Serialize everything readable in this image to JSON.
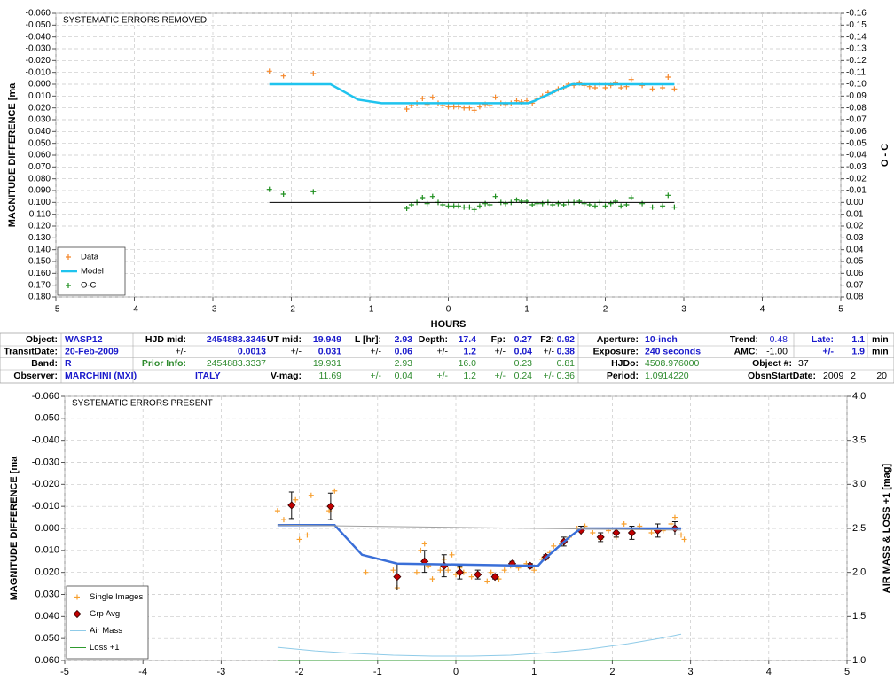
{
  "chart_data": [
    {
      "type": "line",
      "title": "SYSTEMATIC ERRORS REMOVED",
      "ylabel": "MAGNITUDE DIFFERENCE [ma",
      "y2label": "O - C",
      "xlabel": "HOURS",
      "xlim": [
        -5,
        5
      ],
      "xticks": [
        -5,
        -4,
        -3,
        -2,
        -1,
        0,
        1,
        2,
        3,
        4,
        5
      ],
      "ylim": [
        -0.06,
        0.18
      ],
      "y_inverted": true,
      "yticks": [
        {
          "value": -0.06,
          "label": "-0.060"
        },
        {
          "value": -0.05,
          "label": "-0.050"
        },
        {
          "value": -0.04,
          "label": "-0.040"
        },
        {
          "value": -0.03,
          "label": "-0.030"
        },
        {
          "value": -0.02,
          "label": "-0.020"
        },
        {
          "value": -0.01,
          "label": "-0.010"
        },
        {
          "value": 0,
          "label": "0.000"
        },
        {
          "value": 0.01,
          "label": "0.010"
        },
        {
          "value": 0.02,
          "label": "0.020"
        },
        {
          "value": 0.03,
          "label": "0.030"
        },
        {
          "value": 0.04,
          "label": "0.040"
        },
        {
          "value": 0.05,
          "label": "0.050"
        },
        {
          "value": 0.06,
          "label": "0.060"
        },
        {
          "value": 0.07,
          "label": "0.070"
        },
        {
          "value": 0.08,
          "label": "0.080"
        },
        {
          "value": 0.09,
          "label": "0.090"
        },
        {
          "value": 0.1,
          "label": "0.100"
        },
        {
          "value": 0.11,
          "label": "0.110"
        },
        {
          "value": 0.12,
          "label": "0.120"
        },
        {
          "value": 0.13,
          "label": "0.130"
        },
        {
          "value": 0.14,
          "label": "0.140"
        },
        {
          "value": 0.15,
          "label": "0.150"
        },
        {
          "value": 0.16,
          "label": "0.160"
        },
        {
          "value": 0.17,
          "label": "0.170"
        },
        {
          "value": 0.18,
          "label": "0.180"
        }
      ],
      "y2lim": [
        -0.16,
        0.08
      ],
      "y2_inverted": true,
      "y2ticks": [
        {
          "value": -0.16,
          "label": "-0.16"
        },
        {
          "value": -0.15,
          "label": "-0.15"
        },
        {
          "value": -0.14,
          "label": "-0.14"
        },
        {
          "value": -0.13,
          "label": "-0.13"
        },
        {
          "value": -0.12,
          "label": "-0.12"
        },
        {
          "value": -0.11,
          "label": "-0.11"
        },
        {
          "value": -0.1,
          "label": "-0.10"
        },
        {
          "value": -0.09,
          "label": "-0.09"
        },
        {
          "value": -0.08,
          "label": "-0.08"
        },
        {
          "value": -0.07,
          "label": "-0.07"
        },
        {
          "value": -0.06,
          "label": "-0.06"
        },
        {
          "value": -0.05,
          "label": "-0.05"
        },
        {
          "value": -0.04,
          "label": "-0.04"
        },
        {
          "value": -0.03,
          "label": "-0.03"
        },
        {
          "value": -0.02,
          "label": "-0.02"
        },
        {
          "value": -0.01,
          "label": "-0.01"
        },
        {
          "value": 0,
          "label": "0.00"
        },
        {
          "value": 0.01,
          "label": "0.01"
        },
        {
          "value": 0.02,
          "label": "0.02"
        },
        {
          "value": 0.03,
          "label": "0.03"
        },
        {
          "value": 0.04,
          "label": "0.04"
        },
        {
          "value": 0.05,
          "label": "0.05"
        },
        {
          "value": 0.06,
          "label": "0.06"
        },
        {
          "value": 0.07,
          "label": "0.07"
        },
        {
          "value": 0.08,
          "label": "0.08"
        }
      ],
      "grid": true,
      "legend": "lower left",
      "series": [
        {
          "name": "Data",
          "type": "scatter",
          "color": "#f5872a",
          "x": [
            -2.28,
            -2.1,
            -1.72,
            -0.53,
            -0.47,
            -0.4,
            -0.33,
            -0.27,
            -0.2,
            -0.13,
            -0.07,
            0,
            0.07,
            0.13,
            0.2,
            0.27,
            0.33,
            0.4,
            0.47,
            0.53,
            0.6,
            0.67,
            0.73,
            0.8,
            0.87,
            0.93,
            1,
            1.07,
            1.13,
            1.2,
            1.27,
            1.33,
            1.4,
            1.47,
            1.53,
            1.6,
            1.67,
            1.73,
            1.8,
            1.87,
            1.93,
            2,
            2.07,
            2.13,
            2.2,
            2.27,
            2.33,
            2.47,
            2.6,
            2.73,
            2.8,
            2.88
          ],
          "values": [
            -0.011,
            -0.007,
            -0.009,
            0.021,
            0.018,
            0.016,
            0.012,
            0.017,
            0.011,
            0.016,
            0.018,
            0.019,
            0.019,
            0.019,
            0.02,
            0.02,
            0.022,
            0.019,
            0.017,
            0.018,
            0.011,
            0.016,
            0.017,
            0.016,
            0.014,
            0.015,
            0.014,
            0.016,
            0.012,
            0.01,
            0.007,
            0.007,
            0.004,
            0.003,
            0,
            0.001,
            -0.001,
            0.001,
            0.002,
            0.003,
            0,
            0.003,
            0.001,
            -0.001,
            0.003,
            0.002,
            -0.004,
            0.001,
            0.004,
            0.003,
            -0.006,
            0.004
          ]
        },
        {
          "name": "Model",
          "type": "line",
          "color": "#1fc3ee",
          "line_width": 2.5,
          "x": [
            -2.28,
            -1.5,
            -1.15,
            -0.85,
            1.02,
            1.1,
            1.42,
            1.58,
            2.88
          ],
          "values": [
            0,
            0,
            0.013,
            0.016,
            0.016,
            0.014,
            0.004,
            0,
            0
          ]
        },
        {
          "name": "O-C",
          "type": "scatter",
          "color": "#1f8f1f",
          "axis": "y2",
          "x": [
            -2.28,
            -2.1,
            -1.72,
            -0.53,
            -0.47,
            -0.4,
            -0.33,
            -0.27,
            -0.2,
            -0.13,
            -0.07,
            0,
            0.07,
            0.13,
            0.2,
            0.27,
            0.33,
            0.4,
            0.47,
            0.53,
            0.6,
            0.67,
            0.73,
            0.8,
            0.87,
            0.93,
            1,
            1.07,
            1.13,
            1.2,
            1.27,
            1.33,
            1.4,
            1.47,
            1.53,
            1.6,
            1.67,
            1.73,
            1.8,
            1.87,
            1.93,
            2,
            2.07,
            2.13,
            2.2,
            2.27,
            2.33,
            2.47,
            2.6,
            2.73,
            2.8,
            2.88
          ],
          "values": [
            -0.011,
            -0.007,
            -0.009,
            0.005,
            0.002,
            0,
            -0.004,
            0.001,
            -0.005,
            0,
            0.002,
            0.003,
            0.003,
            0.003,
            0.004,
            0.004,
            0.006,
            0.003,
            0.001,
            0.002,
            -0.005,
            0,
            0.001,
            0,
            -0.002,
            -0.001,
            -0.001,
            0.002,
            0.001,
            0.001,
            0,
            0.002,
            0.001,
            0.002,
            0,
            0,
            -0.001,
            0.001,
            0.002,
            0.003,
            0,
            0.003,
            0.001,
            -0.001,
            0.003,
            0.002,
            -0.004,
            0.001,
            0.004,
            0.003,
            -0.006,
            0.004
          ]
        },
        {
          "type": "line",
          "color": "#000000",
          "axis": "y2",
          "line_width": 1,
          "x": [
            -2.28,
            2.88
          ],
          "values": [
            0,
            0
          ]
        }
      ]
    },
    {
      "type": "line",
      "title": "SYSTEMATIC ERRORS PRESENT",
      "ylabel": "MAGNITUDE DIFFERENCE [ma",
      "y2label": "AIR MASS & LOSS +1 [mag]",
      "xlim": [
        -5,
        5
      ],
      "xticks": [
        -5,
        -4,
        -3,
        -2,
        -1,
        0,
        1,
        2,
        3,
        4,
        5
      ],
      "ylim": [
        -0.06,
        0.06
      ],
      "y_inverted": true,
      "yticks": [
        {
          "value": -0.06,
          "label": "-0.060"
        },
        {
          "value": -0.05,
          "label": "-0.050"
        },
        {
          "value": -0.04,
          "label": "-0.040"
        },
        {
          "value": -0.03,
          "label": "-0.030"
        },
        {
          "value": -0.02,
          "label": "-0.020"
        },
        {
          "value": -0.01,
          "label": "-0.010"
        },
        {
          "value": 0,
          "label": "0.000"
        },
        {
          "value": 0.01,
          "label": "0.010"
        },
        {
          "value": 0.02,
          "label": "0.020"
        },
        {
          "value": 0.03,
          "label": "0.030"
        },
        {
          "value": 0.04,
          "label": "0.040"
        },
        {
          "value": 0.05,
          "label": "0.050"
        },
        {
          "value": 0.06,
          "label": "0.060"
        }
      ],
      "y2lim": [
        1,
        4
      ],
      "y2_inverted": false,
      "y2ticks": [
        {
          "value": 1,
          "label": "1.0"
        },
        {
          "value": 1.5,
          "label": "1.5"
        },
        {
          "value": 2,
          "label": "2.0"
        },
        {
          "value": 2.5,
          "label": "2.5"
        },
        {
          "value": 3,
          "label": "3.0"
        },
        {
          "value": 3.5,
          "label": "3.5"
        },
        {
          "value": 4,
          "label": "4.0"
        }
      ],
      "grid": true,
      "legend": "lower left",
      "series": [
        {
          "name": "Single Images",
          "type": "scatter",
          "color": "#f7a030",
          "x": [
            -2.28,
            -2.2,
            -2.05,
            -2,
            -1.9,
            -1.85,
            -1.62,
            -1.55,
            -1.15,
            -0.8,
            -0.75,
            -0.5,
            -0.45,
            -0.4,
            -0.35,
            -0.3,
            -0.2,
            -0.15,
            -0.1,
            -0.05,
            0,
            0.05,
            0.1,
            0.2,
            0.3,
            0.4,
            0.45,
            0.55,
            0.62,
            0.7,
            0.8,
            0.9,
            1,
            1.1,
            1.2,
            1.25,
            1.35,
            1.45,
            1.55,
            1.65,
            1.75,
            1.85,
            1.95,
            2.05,
            2.15,
            2.25,
            2.35,
            2.5,
            2.65,
            2.75,
            2.8,
            2.88,
            2.92
          ],
          "values": [
            -0.008,
            -0.004,
            -0.013,
            0.005,
            0.003,
            -0.015,
            -0.008,
            -0.017,
            0.02,
            0.019,
            0.027,
            0.02,
            0.01,
            0.007,
            0.017,
            0.023,
            0.019,
            0.014,
            0.019,
            0.012,
            0.021,
            0.018,
            0.02,
            0.022,
            0.021,
            0.024,
            0.02,
            0.023,
            0.019,
            0.017,
            0.018,
            0.016,
            0.019,
            0.014,
            0.011,
            0.008,
            0.007,
            0.004,
            0,
            -0.001,
            0.002,
            0.005,
            0.001,
            0.004,
            -0.002,
            0.003,
            -0.001,
            0.002,
            0.001,
            -0.002,
            -0.005,
            0.003,
            0.005
          ]
        },
        {
          "name": "Grp Avg",
          "type": "errorbar",
          "color": "#c00000",
          "x": [
            -2.1,
            -1.6,
            -0.75,
            -0.4,
            -0.15,
            0.05,
            0.28,
            0.5,
            0.72,
            0.95,
            1.15,
            1.38,
            1.6,
            1.85,
            2.05,
            2.25,
            2.58,
            2.8
          ],
          "values": [
            -0.0105,
            -0.01,
            0.022,
            0.015,
            0.017,
            0.02,
            0.021,
            0.022,
            0.016,
            0.017,
            0.013,
            0.006,
            0.001,
            0.004,
            0.002,
            0.002,
            0.001,
            0
          ],
          "errors": [
            0.006,
            0.006,
            0.006,
            0.005,
            0.005,
            0.003,
            0.002,
            0.001,
            0.001,
            0.001,
            0.001,
            0.002,
            0.002,
            0.002,
            0.002,
            0.003,
            0.003,
            0.003
          ]
        },
        {
          "name": "Air Mass",
          "type": "line",
          "color": "#8fcbe8",
          "axis": "y2",
          "line_width": 1,
          "x": [
            -2.28,
            -1.8,
            -1.3,
            -0.8,
            -0.3,
            0.2,
            0.7,
            1.2,
            1.7,
            2.2,
            2.6,
            2.88
          ],
          "values": [
            1.15,
            1.11,
            1.08,
            1.06,
            1.05,
            1.05,
            1.06,
            1.09,
            1.13,
            1.19,
            1.25,
            1.3
          ]
        },
        {
          "name": "Loss +1",
          "type": "line",
          "color": "#2e9a2e",
          "axis": "y2",
          "line_width": 1,
          "x": [
            -2.28,
            2.88
          ],
          "values": [
            1,
            1
          ]
        },
        {
          "type": "line",
          "color": "#3a6fd8",
          "line_width": 2.5,
          "x": [
            -2.28,
            -1.55,
            -1.2,
            -0.75,
            1.05,
            1.1,
            1.45,
            1.6,
            2.88
          ],
          "values": [
            -0.0015,
            -0.0015,
            0.012,
            0.016,
            0.017,
            0.015,
            0.004,
            0,
            0
          ]
        },
        {
          "type": "line",
          "color": "#a0a0a0",
          "line_width": 1,
          "x": [
            -2.28,
            2.88
          ],
          "values": [
            -0.0015,
            0.0008
          ]
        }
      ]
    }
  ],
  "table": {
    "rows": [
      [
        "Object:",
        "WASP12",
        "HJD mid:",
        "2454883.3345",
        "UT mid:",
        "19.949",
        "L [hr]:",
        "2.93",
        "Depth:",
        "17.4",
        "Fp:",
        "0.27",
        "F2:",
        "0.92",
        "Aperture:",
        "10-inch",
        "Trend:",
        "0.48",
        "Late:",
        "1.1",
        "min"
      ],
      [
        "TransitDate:",
        "20-Feb-2009",
        "+/-",
        "0.0013",
        "+/-",
        "0.031",
        "+/-",
        "0.06",
        "+/-",
        "1.2",
        "+/-",
        "0.04",
        "+/-",
        "0.38",
        "Exposure:",
        "240 seconds",
        "AMC:",
        "-1.00",
        "+/-",
        "1.9",
        "min"
      ],
      [
        "Band:",
        "R",
        "Prior Info:",
        "2454883.3337",
        "19.931",
        "2.93",
        "16.0",
        "0.23",
        "0.81",
        "HJDo:",
        "4508.976000",
        "Object #:",
        "37"
      ],
      [
        "Observer:",
        "MARCHINI (MXI)",
        "ITALY",
        "V-mag:",
        "11.69",
        "+/-",
        "0.04",
        "+/-",
        "1.2",
        "+/-",
        "0.24",
        "+/-",
        "0.36",
        "Period:",
        "1.0914220",
        "ObsnStartDate:",
        "2009",
        "2",
        "20"
      ]
    ]
  }
}
